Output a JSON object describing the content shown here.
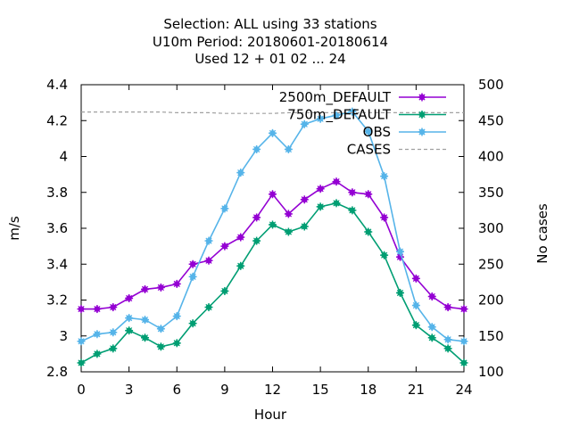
{
  "chart_data": {
    "type": "line",
    "title_lines": [
      "Selection: ALL using    33 stations",
      "U10m   Period: 20180601-20180614",
      "Used  12 + 01 02 ... 24"
    ],
    "xlabel": "Hour",
    "ylabel": "m/s",
    "y2label": "No cases",
    "xlim": [
      0,
      24
    ],
    "ylim": [
      2.8,
      4.4
    ],
    "y2lim": [
      100,
      500
    ],
    "xticks": [
      0,
      3,
      6,
      9,
      12,
      15,
      18,
      21,
      24
    ],
    "yticks": [
      2.8,
      3,
      3.2,
      3.4,
      3.6,
      3.8,
      4,
      4.2,
      4.4
    ],
    "y2ticks": [
      100,
      150,
      200,
      250,
      300,
      350,
      400,
      450,
      500
    ],
    "legend_position": "top-right",
    "x": [
      0,
      1,
      2,
      3,
      4,
      5,
      6,
      7,
      8,
      9,
      10,
      11,
      12,
      13,
      14,
      15,
      16,
      17,
      18,
      19,
      20,
      21,
      22,
      23,
      24
    ],
    "series": [
      {
        "name": "2500m_DEFAULT",
        "color": "#9400d3",
        "axis": "y",
        "values": [
          3.15,
          3.15,
          3.16,
          3.21,
          3.26,
          3.27,
          3.29,
          3.4,
          3.42,
          3.5,
          3.55,
          3.66,
          3.79,
          3.68,
          3.76,
          3.82,
          3.86,
          3.8,
          3.79,
          3.66,
          3.44,
          3.32,
          3.22,
          3.16,
          3.15
        ]
      },
      {
        "name": "750m_DEFAULT",
        "color": "#009e73",
        "axis": "y",
        "values": [
          2.85,
          2.9,
          2.93,
          3.03,
          2.99,
          2.94,
          2.96,
          3.07,
          3.16,
          3.25,
          3.39,
          3.53,
          3.62,
          3.58,
          3.61,
          3.72,
          3.74,
          3.7,
          3.58,
          3.45,
          3.24,
          3.06,
          2.99,
          2.93,
          2.85
        ]
      },
      {
        "name": "OBS",
        "color": "#56b4e9",
        "axis": "y",
        "values": [
          2.97,
          3.01,
          3.02,
          3.1,
          3.09,
          3.04,
          3.11,
          3.33,
          3.53,
          3.71,
          3.91,
          4.04,
          4.13,
          4.04,
          4.18,
          4.21,
          4.23,
          4.25,
          4.14,
          3.89,
          3.47,
          3.17,
          3.05,
          2.98,
          2.97
        ]
      },
      {
        "name": "CASES",
        "color": "#a0a0a0",
        "axis": "y2",
        "dashed": true,
        "values": [
          462,
          462,
          462,
          462,
          462,
          462,
          461,
          461,
          461,
          460,
          460,
          460,
          460,
          461,
          461,
          461,
          461,
          461,
          461,
          461,
          461,
          461,
          461,
          461,
          461
        ]
      }
    ]
  }
}
